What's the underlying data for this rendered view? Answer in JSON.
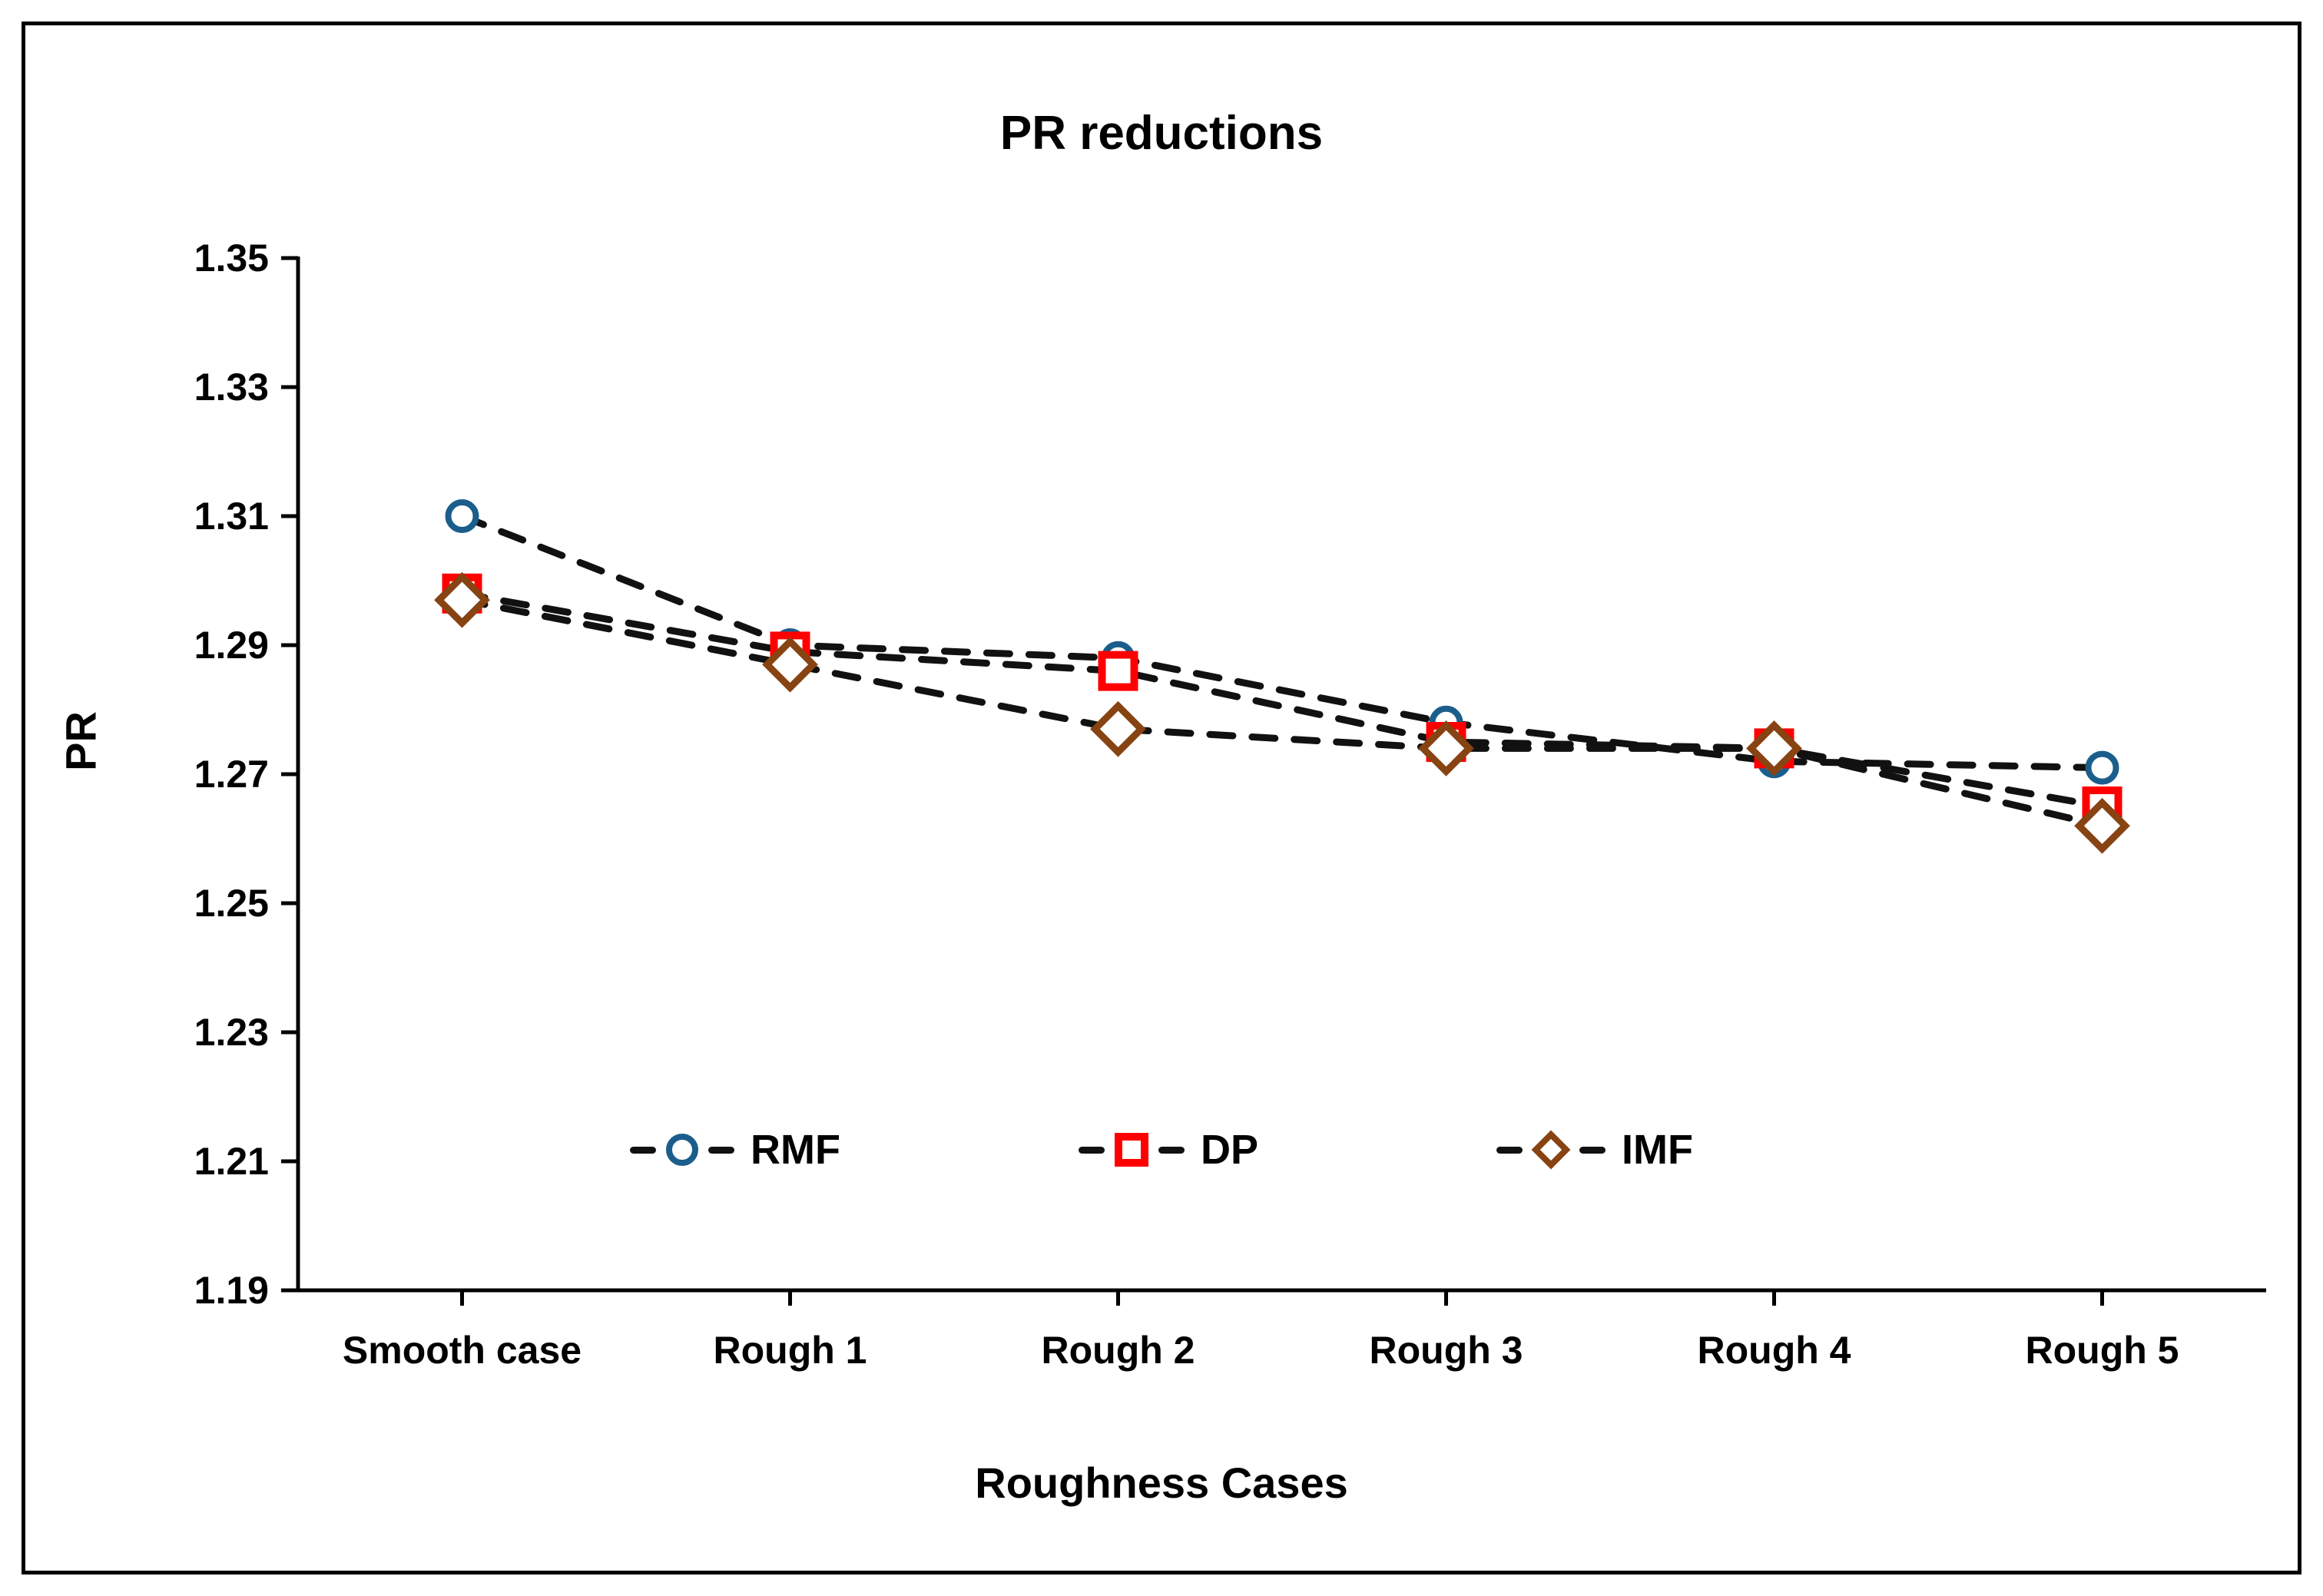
{
  "chart_data": {
    "type": "line",
    "title": "PR reductions",
    "xlabel": "Roughness Cases",
    "ylabel": "PR",
    "categories": [
      "Smooth case",
      "Rough 1",
      "Rough 2",
      "Rough 3",
      "Rough 4",
      "Rough 5"
    ],
    "ylim": [
      1.19,
      1.35
    ],
    "ytick_step": 0.02,
    "ytick_labels": [
      "1.35",
      "1.33",
      "1.31",
      "1.29",
      "1.27",
      "1.25",
      "1.23",
      "1.21",
      "1.19"
    ],
    "grid": false,
    "legend_position": "inside-bottom",
    "line_color": "#111111",
    "axis_color": "#000000",
    "series": [
      {
        "name": "RMF",
        "marker": "circle",
        "color": "#1B5E8C",
        "values": [
          1.31,
          1.29,
          1.288,
          1.278,
          1.272,
          1.271
        ]
      },
      {
        "name": "DP",
        "marker": "square",
        "color": "#FF0000",
        "values": [
          1.298,
          1.289,
          1.286,
          1.275,
          1.274,
          1.265
        ]
      },
      {
        "name": "IMF",
        "marker": "diamond",
        "color": "#874312",
        "values": [
          1.297,
          1.287,
          1.277,
          1.274,
          1.274,
          1.262
        ]
      }
    ]
  }
}
